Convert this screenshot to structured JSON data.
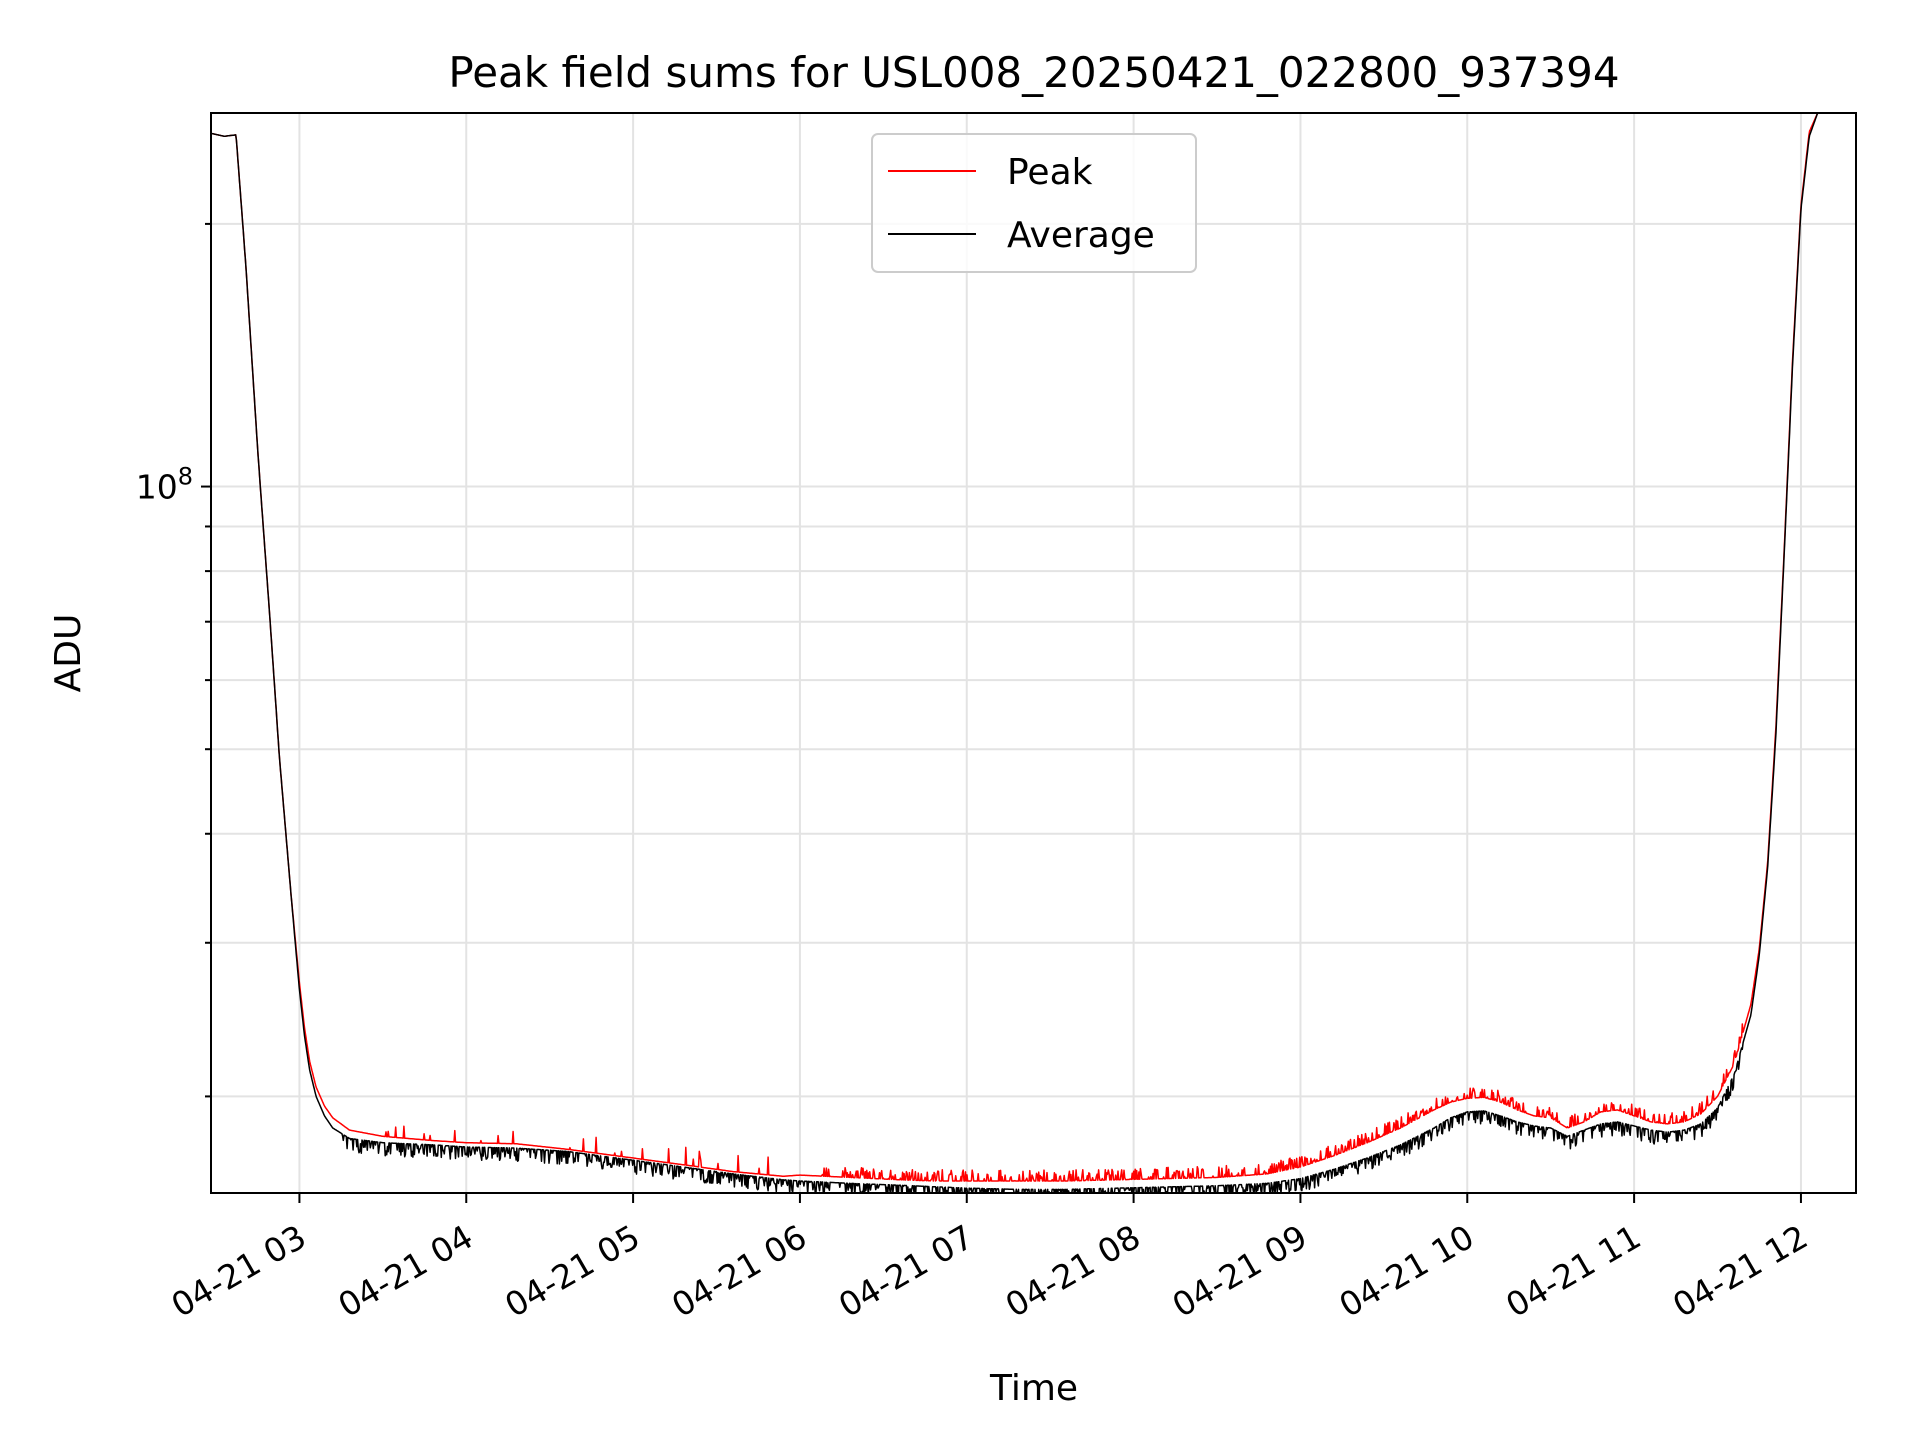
{
  "chart_data": {
    "type": "line",
    "title": "Peak field sums for USL008_20250421_022800_937394",
    "xlabel": "Time",
    "ylabel": "ADU",
    "yscale": "log",
    "ylim": [
      15500000,
      268000000
    ],
    "xlim": [
      2.47,
      12.33
    ],
    "x_unit": "hours since 2025-04-21 00:00",
    "x_ticks": [
      {
        "value": 3,
        "label": "04-21 03"
      },
      {
        "value": 4,
        "label": "04-21 04"
      },
      {
        "value": 5,
        "label": "04-21 05"
      },
      {
        "value": 6,
        "label": "04-21 06"
      },
      {
        "value": 7,
        "label": "04-21 07"
      },
      {
        "value": 8,
        "label": "04-21 08"
      },
      {
        "value": 9,
        "label": "04-21 09"
      },
      {
        "value": 10,
        "label": "04-21 10"
      },
      {
        "value": 11,
        "label": "04-21 11"
      },
      {
        "value": 12,
        "label": "04-21 12"
      }
    ],
    "y_major_tick": {
      "value": 100000000,
      "label_base": "10",
      "label_exp": "8"
    },
    "y_minor_ticks": [
      20000000,
      30000000,
      40000000,
      50000000,
      60000000,
      70000000,
      80000000,
      90000000,
      200000000
    ],
    "grid": true,
    "legend": "upper center",
    "series": [
      {
        "name": "Peak",
        "color": "#ff0000",
        "x": [
          2.47,
          2.55,
          2.62,
          2.68,
          2.75,
          2.82,
          2.88,
          2.95,
          3.0,
          3.03,
          3.06,
          3.1,
          3.15,
          3.2,
          3.3,
          3.5,
          3.8,
          4.0,
          4.3,
          4.6,
          4.8,
          5.0,
          5.3,
          5.6,
          5.9,
          6.0,
          6.3,
          6.6,
          6.8,
          7.0,
          7.3,
          7.6,
          7.9,
          8.2,
          8.5,
          8.8,
          9.0,
          9.2,
          9.4,
          9.6,
          9.8,
          9.9,
          10.0,
          10.1,
          10.2,
          10.3,
          10.4,
          10.5,
          10.6,
          10.7,
          10.8,
          10.9,
          11.0,
          11.1,
          11.2,
          11.3,
          11.4,
          11.5,
          11.6,
          11.7,
          11.75,
          11.8,
          11.85,
          11.9,
          11.95,
          12.0,
          12.05,
          12.1,
          12.15,
          12.33
        ],
        "y": [
          254000000,
          252000000,
          253000000,
          178000000,
          110000000,
          72000000,
          49000000,
          34000000,
          27000000,
          24000000,
          22000000,
          20500000,
          19500000,
          18900000,
          18300000,
          18000000,
          17800000,
          17700000,
          17650000,
          17400000,
          17200000,
          17000000,
          16700000,
          16400000,
          16200000,
          16250000,
          16150000,
          16050000,
          16000000,
          16000000,
          16000000,
          16000000,
          16050000,
          16100000,
          16150000,
          16300000,
          16600000,
          17100000,
          17700000,
          18400000,
          19300000,
          19700000,
          19900000,
          19950000,
          19700000,
          19300000,
          19000000,
          18900000,
          18400000,
          18700000,
          19200000,
          19300000,
          19000000,
          18700000,
          18600000,
          18700000,
          19100000,
          20000000,
          21800000,
          25500000,
          29500000,
          37000000,
          53000000,
          85000000,
          140000000,
          210000000,
          255000000,
          268000000,
          268000000,
          268000000
        ]
      },
      {
        "name": "Average",
        "color": "#000000",
        "x": [
          2.47,
          2.55,
          2.62,
          2.68,
          2.75,
          2.82,
          2.88,
          2.95,
          3.0,
          3.03,
          3.06,
          3.1,
          3.15,
          3.2,
          3.3,
          3.5,
          3.8,
          4.0,
          4.3,
          4.6,
          4.8,
          5.0,
          5.3,
          5.6,
          5.9,
          6.0,
          6.3,
          6.6,
          6.8,
          7.0,
          7.3,
          7.6,
          7.9,
          8.2,
          8.5,
          8.8,
          9.0,
          9.2,
          9.4,
          9.6,
          9.8,
          9.9,
          10.0,
          10.1,
          10.2,
          10.3,
          10.4,
          10.5,
          10.6,
          10.7,
          10.8,
          10.9,
          11.0,
          11.1,
          11.2,
          11.3,
          11.4,
          11.5,
          11.6,
          11.7,
          11.75,
          11.8,
          11.85,
          11.9,
          11.95,
          12.0,
          12.05,
          12.1,
          12.15,
          12.33
        ],
        "y": [
          254000000,
          252000000,
          253000000,
          178000000,
          110000000,
          72000000,
          49000000,
          34000000,
          26500000,
          23500000,
          21500000,
          20000000,
          19000000,
          18400000,
          17900000,
          17700000,
          17600000,
          17500000,
          17450000,
          17300000,
          17100000,
          16900000,
          16600000,
          16300000,
          16050000,
          16000000,
          15900000,
          15820000,
          15760000,
          15700000,
          15650000,
          15650000,
          15700000,
          15750000,
          15800000,
          15900000,
          16100000,
          16500000,
          17000000,
          17600000,
          18400000,
          18900000,
          19200000,
          19250000,
          19000000,
          18700000,
          18500000,
          18400000,
          18000000,
          18300000,
          18600000,
          18700000,
          18500000,
          18300000,
          18200000,
          18300000,
          18600000,
          19400000,
          21200000,
          24800000,
          29000000,
          36500000,
          52000000,
          84000000,
          138000000,
          208000000,
          252000000,
          268000000,
          268000000,
          268000000
        ]
      }
    ]
  }
}
